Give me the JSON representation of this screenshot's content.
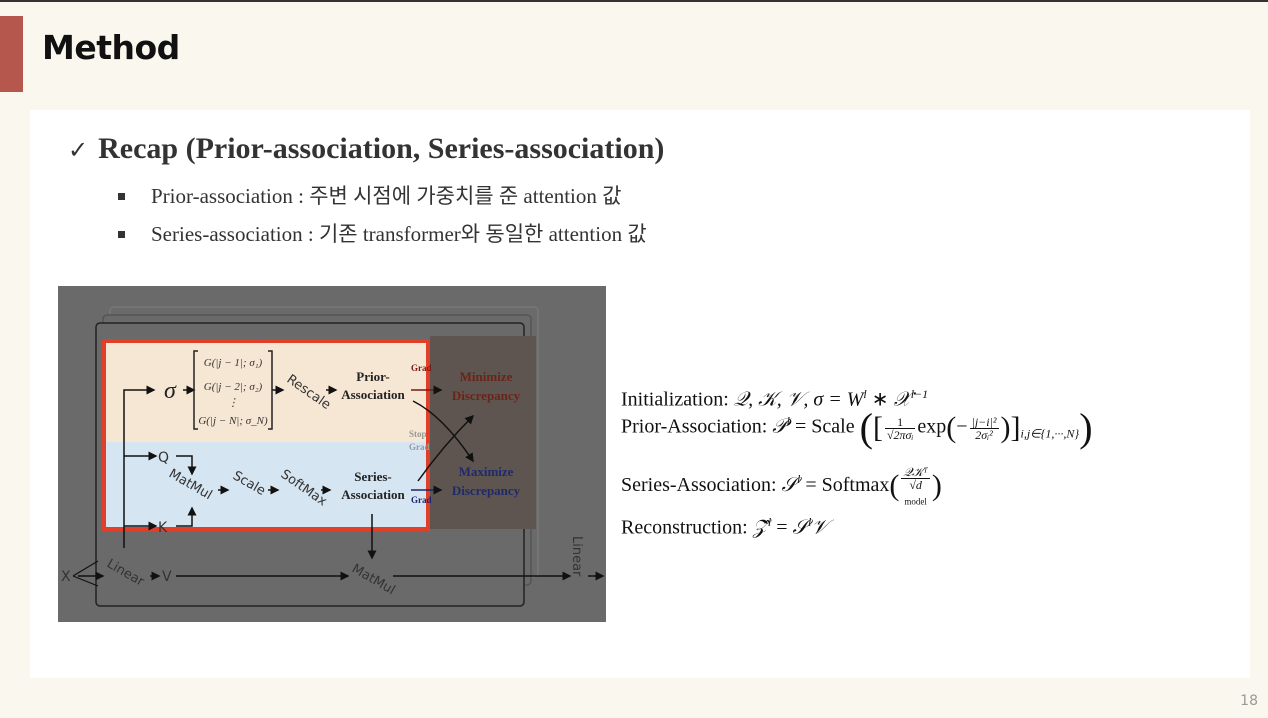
{
  "slide": {
    "title": "Method",
    "page_number": "18",
    "accent_color": "#b5574c"
  },
  "recap": {
    "check_icon": "✓",
    "heading": "Recap (Prior-association, Series-association)",
    "bullets": [
      "Prior-association : 주변 시점에 가중치를 준 attention 값",
      "Series-association : 기존 transformer와 동일한 attention 값"
    ]
  },
  "diagram": {
    "sigma": "σ",
    "matrix": [
      "G(|j − 1|; σ₁)",
      "G(|j − 2|; σ₂)",
      "⋮",
      "G(|j − N|; σ_N)"
    ],
    "rescale": "Rescale",
    "prior": [
      "Prior-",
      "Association"
    ],
    "grad": "Grad",
    "stop_grad": [
      "Stop",
      "Grad"
    ],
    "minimize": [
      "Minimize",
      "Discrepancy"
    ],
    "maximize": [
      "Maximize",
      "Discrepancy"
    ],
    "q": "Q",
    "k": "K",
    "v": "V",
    "x": "X",
    "matmul": "MatMul",
    "scale": "Scale",
    "softmax": "SoftMax",
    "series": [
      "Series-",
      "Association"
    ],
    "linear": "Linear",
    "colors": {
      "prior_bg": "#f6e6d4",
      "series_bg": "#d6e5f2",
      "highlight_box": "#e0402a",
      "minimize": "#6b2418",
      "maximize": "#1f2a6a"
    }
  },
  "formulas": {
    "init_label": "Initialization:",
    "init_expr": "𝒬, 𝒦, 𝒱, σ = W",
    "prior_label": "Prior-Association:",
    "prior_lhs": "𝒫",
    "scale": "Scale",
    "exp": "exp",
    "one": "1",
    "sqrt2pi": "√2πσᵢ",
    "ji2": "|j−i|²",
    "twosig": "2σᵢ²",
    "prior_sub": "i,j∈{1,···,N}",
    "series_label": "Series-Association:",
    "series_lhs": "𝒮",
    "softmax": "Softmax",
    "qk": "𝒬𝒦ᵀ",
    "dmodel": "√d",
    "dmodel_sub": "model",
    "recon_label": "Reconstruction:",
    "recon_lhs": "𝒵̂",
    "recon_rhs": "𝒮",
    "recon_v": "𝒱",
    "sup_l": "l",
    "sup_lm1": "l−1",
    "x_cal": "𝒳",
    "star": " ∗ "
  }
}
